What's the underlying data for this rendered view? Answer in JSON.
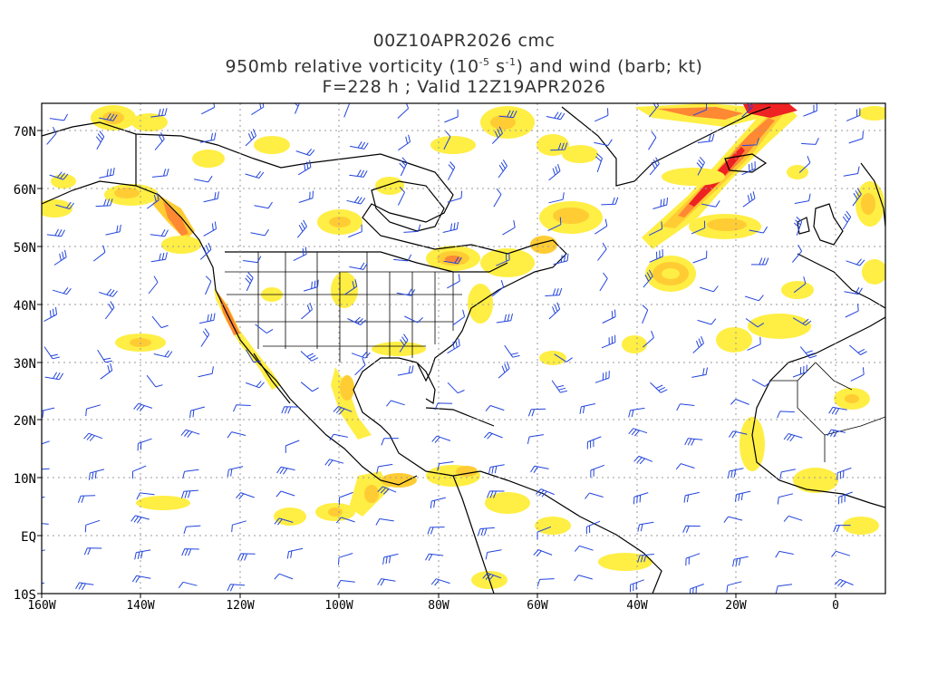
{
  "title": {
    "line1": "00Z10APR2026 cmc",
    "line2_pre": "950mb relative vorticity (10",
    "line2_exp1": "-5",
    "line2_mid": " s",
    "line2_exp2": "-1",
    "line2_post": ") and wind (barb; kt)",
    "line3": "F=228 h ; Valid 12Z19APR2026"
  },
  "axes": {
    "lat_labels": [
      "70N",
      "60N",
      "50N",
      "40N",
      "30N",
      "20N",
      "10N",
      "EQ",
      "10S"
    ],
    "lon_labels": [
      "160W",
      "140W",
      "120W",
      "100W",
      "80W",
      "60W",
      "40W",
      "20W",
      "0"
    ]
  },
  "colors": {
    "vort_low": "#ffff33",
    "vort_mid": "#ffcc33",
    "vort_high": "#ff8833",
    "vort_peak": "#ee2222",
    "barb": "#2244dd",
    "coast": "#000000",
    "grid": "#999999"
  }
}
